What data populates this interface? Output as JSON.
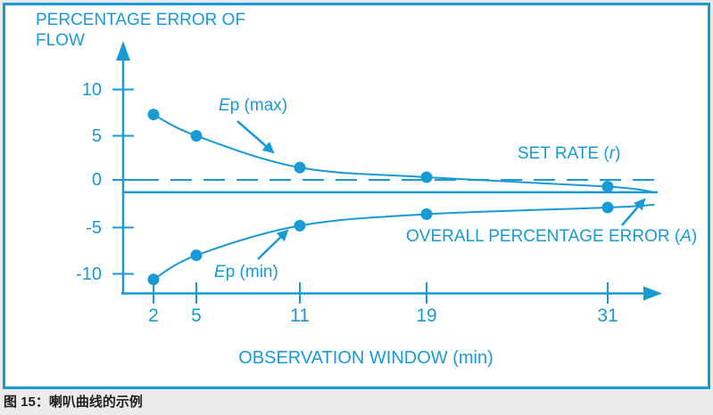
{
  "colors": {
    "accent": "#189AD5",
    "page_background": "#EDEBE9",
    "box_background": "#FFFFFF",
    "caption_text": "#1F1F1F"
  },
  "figure": {
    "title_line1": "PERCENTAGE ERROR OF",
    "title_line2": "FLOW",
    "annotations": {
      "ep_max": {
        "italic": "E",
        "rest": "p (max)"
      },
      "ep_min": {
        "italic": "E",
        "rest": "p (min)"
      },
      "set_rate": {
        "pre": "SET RATE (",
        "italic": "r",
        "post": ")"
      },
      "overall": {
        "pre": "OVERALL PERCENTAGE ERROR (",
        "italic": "A",
        "post": ")"
      }
    }
  },
  "caption": "图 15：喇叭曲线的示例",
  "chart_data": {
    "type": "line",
    "x": [
      2,
      5,
      11,
      19,
      31
    ],
    "x_tick_labels": [
      "2",
      "5",
      "11",
      "19",
      "31"
    ],
    "y_ticks": [
      10,
      5,
      0,
      -5,
      -10
    ],
    "y_tick_labels": [
      "10",
      "5",
      "0",
      "-5",
      "-10"
    ],
    "series": [
      {
        "name": "Ep (max)",
        "values": [
          7.3,
          5.0,
          1.4,
          0.3,
          -0.7
        ]
      },
      {
        "name": "Ep (min)",
        "values": [
          -10.6,
          -8.0,
          -4.8,
          -3.6,
          -2.9
        ]
      }
    ],
    "reference_lines": [
      {
        "name": "SET RATE (r)",
        "value": 0,
        "style": "dashed"
      },
      {
        "name": "OVERALL PERCENTAGE ERROR (A)",
        "value": -1.3,
        "style": "solid"
      }
    ],
    "title": "PERCENTAGE ERROR OF FLOW",
    "xlabel": "OBSERVATION WINDOW (min)",
    "ylabel": "PERCENTAGE ERROR OF FLOW",
    "xlim": [
      0,
      34.5
    ],
    "ylim": [
      -12.5,
      12.5
    ],
    "grid": false,
    "legend": "inline-annotations",
    "curve_extension": {
      "x": 34.1,
      "ep_max_y": -1.3,
      "ep_min_y": -2.6
    }
  }
}
